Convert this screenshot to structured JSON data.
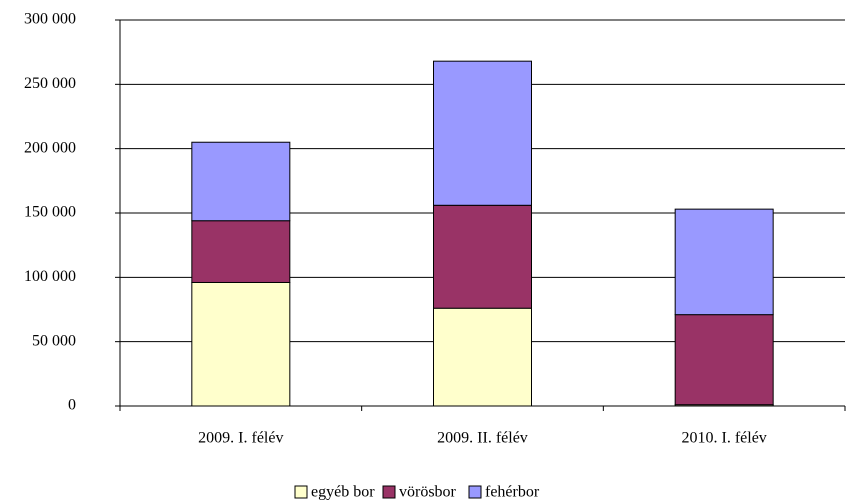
{
  "chart_data": {
    "type": "bar",
    "stacked": true,
    "categories": [
      "2009. I. félév",
      "2009. II. félév",
      "2010. I. félév"
    ],
    "series": [
      {
        "name": "egyéb bor",
        "color": "#ffffcc",
        "values": [
          96000,
          76000,
          1000
        ]
      },
      {
        "name": "vörösbor",
        "color": "#993366",
        "values": [
          48000,
          80000,
          70000
        ]
      },
      {
        "name": "fehérbor",
        "color": "#9999ff",
        "values": [
          61000,
          112000,
          82000
        ]
      }
    ],
    "ylim": [
      0,
      300000
    ],
    "yticks": [
      0,
      {
        "value": 50000,
        "label": "50 000"
      },
      {
        "value": 100000,
        "label": "100 000"
      },
      {
        "value": 150000,
        "label": "150 000"
      },
      {
        "value": 200000,
        "label": "200 000"
      },
      {
        "value": 250000,
        "label": "250 000"
      },
      {
        "value": 300000,
        "label": "300 000"
      }
    ],
    "grid": true,
    "legend": "bottom"
  }
}
